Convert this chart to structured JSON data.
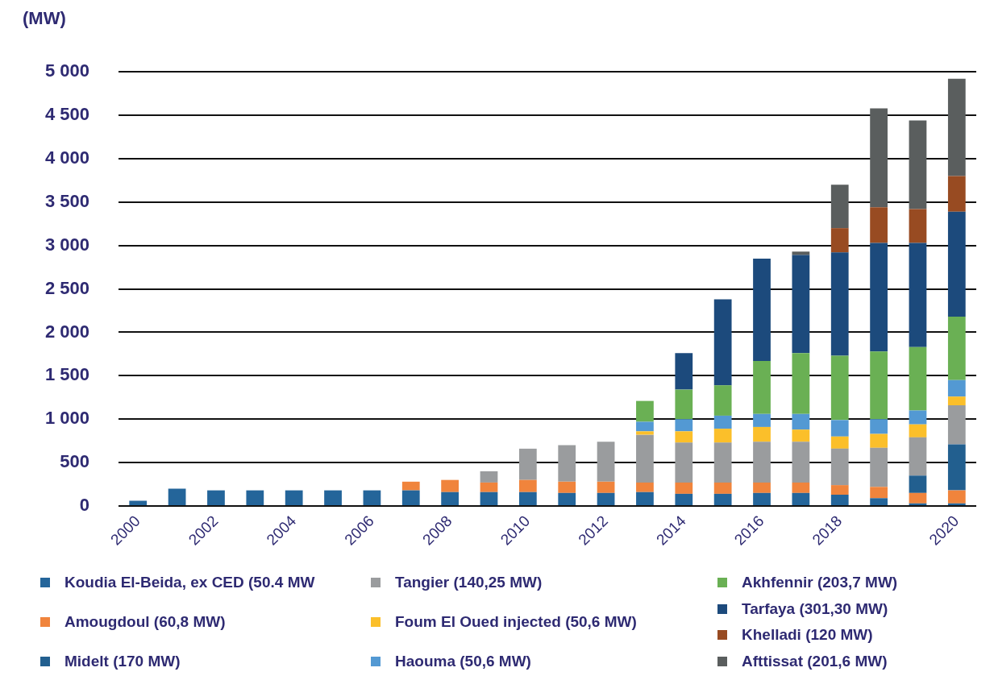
{
  "chart_data": {
    "type": "bar",
    "stacked": true,
    "ylabel": "(MW)",
    "categories": [
      "2000",
      null,
      "2002",
      null,
      "2004",
      null,
      "2006",
      null,
      "2008",
      null,
      "2010",
      null,
      "2012",
      null,
      "2014",
      null,
      "2016",
      null,
      "2018",
      null,
      null,
      "2020"
    ],
    "series": [
      {
        "name": "Koudia El-Beida, ex CED (50.4 MW",
        "color": "#24659a",
        "values": [
          60,
          200,
          180,
          180,
          180,
          180,
          180,
          180,
          160,
          160,
          160,
          150,
          150,
          160,
          140,
          140,
          150,
          150,
          130,
          90,
          30,
          30
        ]
      },
      {
        "name": "Amougdoul (60,8 MW)",
        "color": "#f0843c",
        "values": [
          null,
          null,
          null,
          null,
          null,
          null,
          null,
          100,
          140,
          110,
          140,
          130,
          130,
          110,
          130,
          130,
          120,
          120,
          110,
          130,
          120,
          150
        ]
      },
      {
        "name": "Midelt (170 MW)",
        "color": "#225f8f",
        "values": [
          null,
          null,
          null,
          null,
          null,
          null,
          null,
          null,
          null,
          null,
          null,
          null,
          null,
          null,
          null,
          null,
          null,
          null,
          null,
          null,
          200,
          530
        ]
      },
      {
        "name": "Tangier (140,25 MW)",
        "color": "#9a9c9e",
        "values": [
          null,
          null,
          null,
          null,
          null,
          null,
          null,
          null,
          null,
          130,
          360,
          420,
          460,
          550,
          460,
          460,
          470,
          470,
          420,
          450,
          440,
          450
        ]
      },
      {
        "name": "Foum El Oued injected (50,6 MW)",
        "color": "#fbbf2a",
        "values": [
          null,
          null,
          null,
          null,
          null,
          null,
          null,
          null,
          null,
          null,
          null,
          null,
          null,
          40,
          130,
          160,
          170,
          140,
          140,
          160,
          150,
          100
        ]
      },
      {
        "name": "Haouma (50,6 MW)",
        "color": "#5399d3",
        "values": [
          null,
          null,
          null,
          null,
          null,
          null,
          null,
          null,
          null,
          null,
          null,
          null,
          null,
          110,
          140,
          150,
          150,
          180,
          190,
          170,
          160,
          190
        ]
      },
      {
        "name": "Akhfennir (203,7 MW)",
        "color": "#6ab054",
        "values": [
          null,
          null,
          null,
          null,
          null,
          null,
          null,
          null,
          null,
          null,
          null,
          null,
          null,
          240,
          340,
          350,
          610,
          700,
          740,
          780,
          730,
          730
        ]
      },
      {
        "name": "Tarfaya (301,30 MW)",
        "color": "#1c4a7c",
        "values": [
          null,
          null,
          null,
          null,
          null,
          null,
          null,
          null,
          null,
          null,
          null,
          null,
          null,
          null,
          420,
          990,
          1180,
          1130,
          1190,
          1250,
          1200,
          1210
        ]
      },
      {
        "name": "Khelladi (120 MW)",
        "color": "#984b22",
        "values": [
          null,
          null,
          null,
          null,
          null,
          null,
          null,
          null,
          null,
          null,
          null,
          null,
          null,
          null,
          null,
          null,
          null,
          null,
          280,
          410,
          390,
          410
        ]
      },
      {
        "name": "Afttissat (201,6 MW)",
        "color": "#5a5e5e",
        "values": [
          null,
          null,
          null,
          null,
          null,
          null,
          null,
          null,
          null,
          null,
          null,
          null,
          null,
          null,
          null,
          null,
          null,
          40,
          500,
          1140,
          1020,
          1120
        ]
      }
    ],
    "ylim": [
      0,
      5000
    ],
    "yticks": [
      0,
      500,
      {
        "value": 1000,
        "label": "1 000"
      },
      {
        "value": 1500,
        "label": "1 500"
      },
      {
        "value": 2000,
        "label": "2 000"
      },
      {
        "value": 2500,
        "label": "2 500"
      },
      {
        "value": 3000,
        "label": "3 000"
      },
      {
        "value": 3500,
        "label": "3 500"
      },
      {
        "value": 4000,
        "label": "4 000"
      },
      {
        "value": 4500,
        "label": "4 500"
      },
      {
        "value": 5000,
        "label": "5 000"
      }
    ],
    "grid": "y",
    "legend": "bottom"
  }
}
